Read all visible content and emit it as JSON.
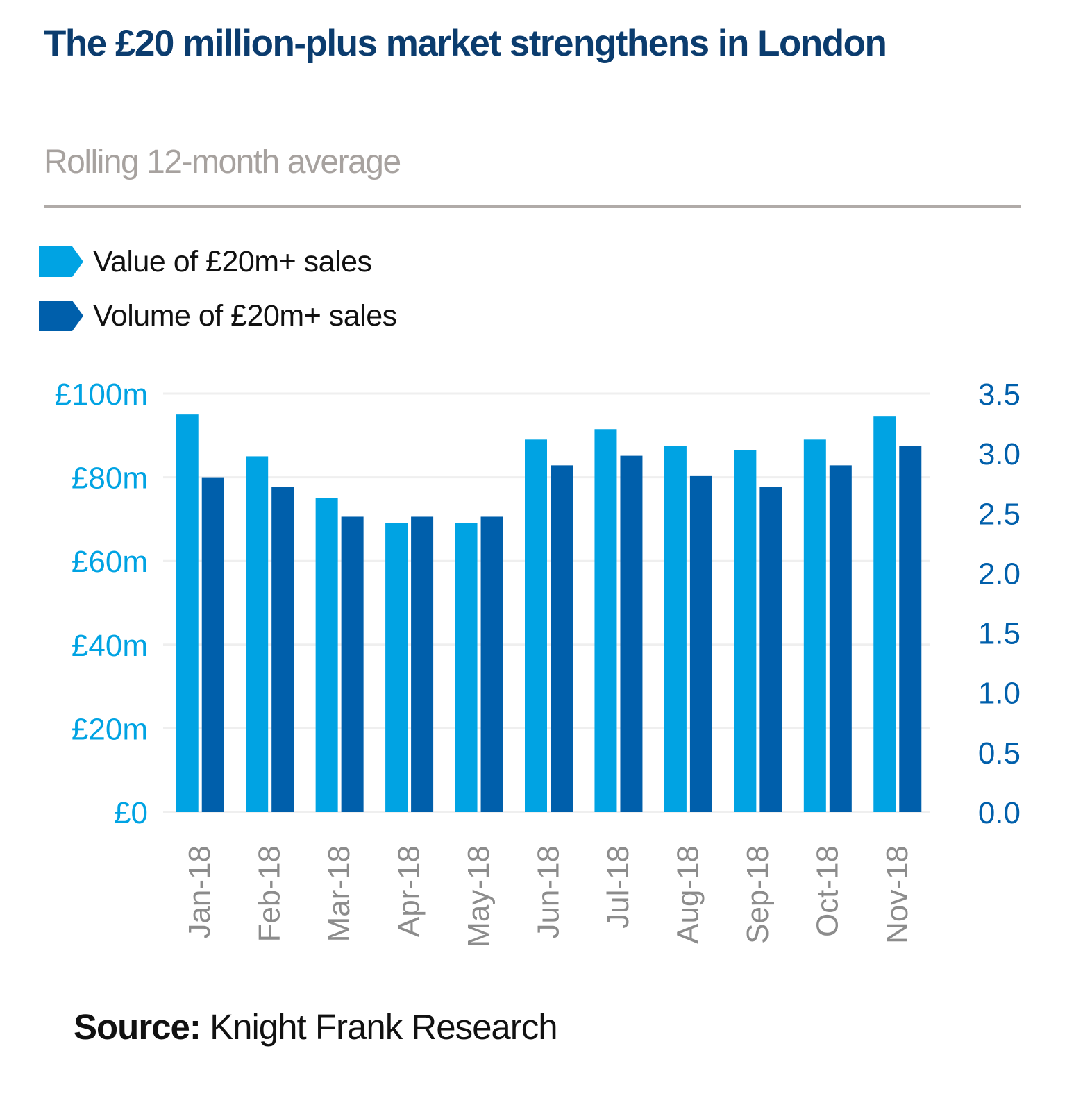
{
  "header": {
    "title": "The £20 million-plus market strengthens in London",
    "subtitle": "Rolling 12-month average"
  },
  "legend": [
    {
      "label": "Value of £20m+ sales",
      "color": "#00a3e3"
    },
    {
      "label": "Volume of £20m+ sales",
      "color": "#005fab"
    }
  ],
  "footer": {
    "source_label": "Source:",
    "source_text": "Knight Frank Research"
  },
  "chart_data": {
    "type": "bar",
    "title": "The £20 million-plus market strengthens in London",
    "subtitle": "Rolling 12-month average",
    "categories": [
      "Jan-18",
      "Feb-18",
      "Mar-18",
      "Apr-18",
      "May-18",
      "Jun-18",
      "Jul-18",
      "Aug-18",
      "Sep-18",
      "Oct-18",
      "Nov-18"
    ],
    "series": [
      {
        "name": "Value of £20m+ sales",
        "axis": "left",
        "color": "#00a3e3",
        "values": [
          95,
          85,
          75,
          69,
          69,
          89,
          91.5,
          87.5,
          86.5,
          89,
          94.5
        ]
      },
      {
        "name": "Volume of £20m+ sales",
        "axis": "right",
        "color": "#005fab",
        "values": [
          2.8,
          2.72,
          2.47,
          2.47,
          2.47,
          2.9,
          2.98,
          2.81,
          2.72,
          2.9,
          3.06
        ]
      }
    ],
    "y_left": {
      "range": [
        0,
        100
      ],
      "ticks": [
        "£0",
        "£20m",
        "£40m",
        "£60m",
        "£80m",
        "£100m"
      ],
      "tick_values": [
        0,
        20,
        40,
        60,
        80,
        100
      ],
      "color": "#00a3e3"
    },
    "y_right": {
      "range": [
        0,
        3.5
      ],
      "ticks": [
        "0.0",
        "0.5",
        "1.0",
        "1.5",
        "2.0",
        "2.5",
        "3.0",
        "3.5"
      ],
      "tick_values": [
        0,
        0.5,
        1,
        1.5,
        2,
        2.5,
        3,
        3.5
      ],
      "color": "#005fab"
    },
    "xlabel": "",
    "ylabel": "",
    "grid": true,
    "legend_position": "top-left",
    "x_tick_color": "#8c8c8c"
  }
}
